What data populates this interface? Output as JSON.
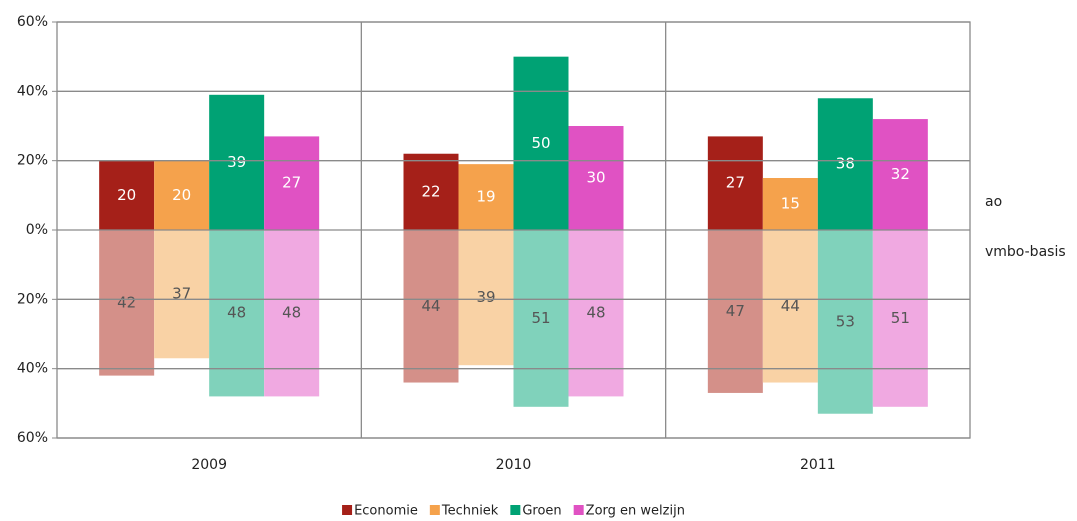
{
  "chart_data": {
    "type": "diverging_bar",
    "categories": [
      "2009",
      "2010",
      "2011"
    ],
    "layers": [
      "ao",
      "vmbo-basis"
    ],
    "series": [
      {
        "name": "Economie",
        "color": "#a52019",
        "light_color": "#d49089",
        "values": [
          20,
          22,
          27
        ],
        "values_below": [
          -42,
          -44,
          -47
        ],
        "value_labels_below": [
          "42",
          "44",
          "47"
        ]
      },
      {
        "name": "Techniek",
        "color": "#f5a24c",
        "light_color": "#f9d2a5",
        "values": [
          20,
          19,
          15
        ],
        "values_below": [
          -37,
          -39,
          -44
        ],
        "value_labels_below": [
          "37",
          "39",
          "44"
        ]
      },
      {
        "name": "Groen",
        "color": "#00a274",
        "light_color": "#80d2bb",
        "values": [
          39,
          50,
          38
        ],
        "values_below": [
          -48,
          -51,
          -53
        ],
        "value_labels_below": [
          "48",
          "51",
          "53"
        ]
      },
      {
        "name": "Zorg en welzijn",
        "color": "#e052c3",
        "light_color": "#f0a9e1",
        "values": [
          27,
          30,
          32
        ],
        "values_below": [
          -48,
          -48,
          -51
        ],
        "value_labels_below": [
          "48",
          "48",
          "51"
        ]
      }
    ],
    "ylim": [
      -60,
      60
    ],
    "yticks": [
      {
        "value": -60,
        "label": "60%"
      },
      {
        "value": -40,
        "label": "40%"
      },
      {
        "value": -20,
        "label": "20%"
      },
      {
        "value": 0,
        "label": "0%"
      },
      {
        "value": 20,
        "label": "20%"
      },
      {
        "value": 40,
        "label": "40%"
      },
      {
        "value": 60,
        "label": "60%"
      }
    ],
    "grid": true,
    "legend": "bottom"
  }
}
